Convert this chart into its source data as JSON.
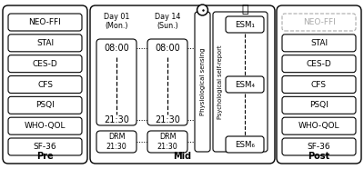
{
  "pre_labels": [
    "NEO-FFI",
    "STAI",
    "CES-D",
    "CFS",
    "PSQI",
    "WHO-QOL",
    "SF-36"
  ],
  "post_labels": [
    "NEO-FFI",
    "STAI",
    "CES-D",
    "CFS",
    "PSQI",
    "WHO-QOL",
    "SF-36"
  ],
  "esm_labels": [
    "ESM₁",
    "ESM₄",
    "ESM₆"
  ],
  "day01_label": "Day 01\n(Mon.)",
  "day14_label": "Day 14\n(Sun.)",
  "time_start": "08:00",
  "time_end": "21:30",
  "drm_label": "DRM\n21:30",
  "mid_label": "Mid",
  "pre_label": "Pre",
  "post_label": "Post",
  "phys_label": "Physiological sensing",
  "psych_label": "Psychological self-report",
  "bg_color": "#ffffff"
}
